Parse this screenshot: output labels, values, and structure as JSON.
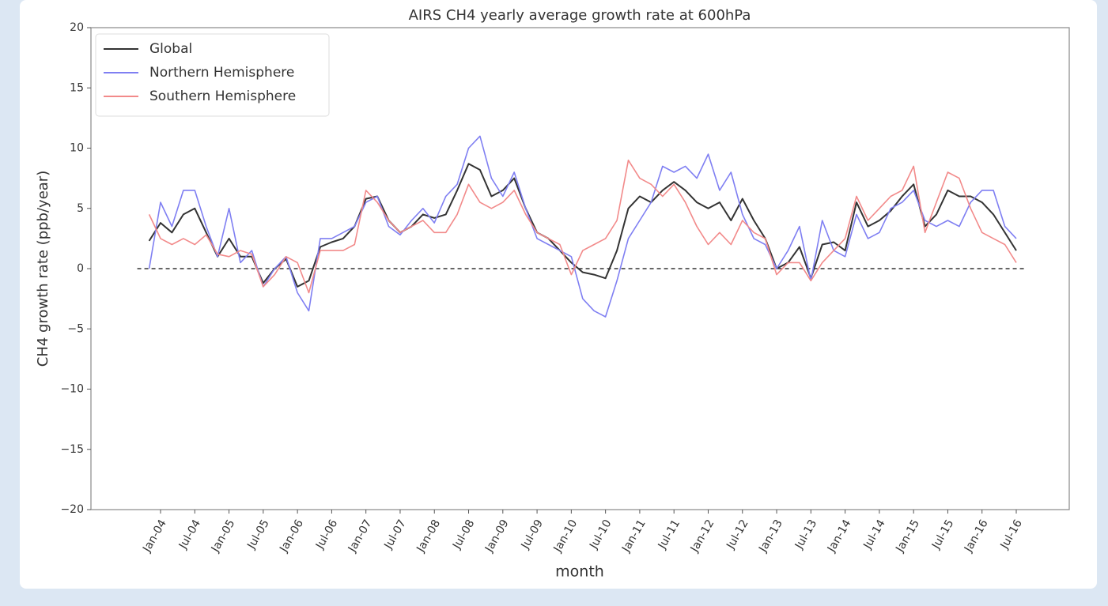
{
  "chart_data": {
    "type": "line",
    "title": "AIRS CH4 yearly average growth rate at 600hPa",
    "xlabel": "month",
    "ylabel": "CH4 growth rate (ppb/year)",
    "categories": [
      null,
      "Jan-04",
      null,
      null,
      "Jul-04",
      null,
      null,
      "Jan-05",
      null,
      null,
      "Jul-05",
      null,
      null,
      "Jan-06",
      null,
      null,
      "Jul-06",
      null,
      null,
      "Jan-07",
      null,
      null,
      "Jul-07",
      null,
      null,
      "Jan-08",
      null,
      null,
      "Jul-08",
      null,
      null,
      "Jan-09",
      null,
      null,
      "Jul-09",
      null,
      null,
      "Jan-10",
      null,
      null,
      "Jul-10",
      null,
      null,
      "Jan-11",
      null,
      null,
      "Jul-11",
      null,
      null,
      "Jan-12",
      null,
      null,
      "Jul-12",
      null,
      null,
      "Jan-13",
      null,
      null,
      "Jul-13",
      null,
      null,
      "Jan-14",
      null,
      null,
      "Jul-14",
      null,
      null,
      "Jan-15",
      null,
      null,
      "Jul-15",
      null,
      null,
      "Jan-16",
      null,
      null,
      "Jul-16"
    ],
    "series": [
      {
        "name": "Global",
        "color": "#333333",
        "values": [
          2.3,
          3.8,
          3.0,
          4.5,
          5.0,
          3.0,
          1.0,
          2.5,
          1.0,
          1.0,
          -1.2,
          0.0,
          0.8,
          -1.5,
          -1.0,
          1.8,
          2.2,
          2.5,
          3.5,
          5.8,
          6.0,
          4.0,
          3.0,
          3.5,
          4.5,
          4.2,
          4.5,
          6.5,
          8.7,
          8.2,
          6.0,
          6.5,
          7.5,
          5.0,
          3.0,
          2.5,
          1.5,
          0.5,
          -0.3,
          -0.5,
          -0.8,
          1.5,
          5.0,
          6.0,
          5.5,
          6.5,
          7.2,
          6.5,
          5.5,
          5.0,
          5.5,
          4.0,
          5.8,
          4.0,
          2.5,
          0.0,
          0.5,
          1.8,
          -0.8,
          2.0,
          2.2,
          1.5,
          5.5,
          3.5,
          4.0,
          4.8,
          6.0,
          7.0,
          3.5,
          4.5,
          6.5,
          6.0,
          6.0,
          5.5,
          4.5,
          3.0,
          1.5
        ]
      },
      {
        "name": "Northern Hemisphere",
        "color": "#7f7ff2",
        "values": [
          0.0,
          5.5,
          3.5,
          6.5,
          6.5,
          3.5,
          1.0,
          5.0,
          0.5,
          1.5,
          -1.5,
          0.0,
          1.0,
          -2.0,
          -3.5,
          2.5,
          2.5,
          3.0,
          3.5,
          5.5,
          6.0,
          3.5,
          2.8,
          4.0,
          5.0,
          3.8,
          6.0,
          7.0,
          10.0,
          11.0,
          7.5,
          6.0,
          8.0,
          5.0,
          2.5,
          2.0,
          1.5,
          1.0,
          -2.5,
          -3.5,
          -4.0,
          -1.0,
          2.5,
          4.0,
          5.5,
          8.5,
          8.0,
          8.5,
          7.5,
          9.5,
          6.5,
          8.0,
          4.5,
          2.5,
          2.0,
          0.0,
          1.5,
          3.5,
          -1.0,
          4.0,
          1.5,
          1.0,
          4.5,
          2.5,
          3.0,
          5.0,
          5.5,
          6.5,
          4.0,
          3.5,
          4.0,
          3.5,
          5.5,
          6.5,
          6.5,
          3.5,
          2.5
        ]
      },
      {
        "name": "Southern Hemisphere",
        "color": "#f28a8a",
        "values": [
          4.5,
          2.5,
          2.0,
          2.5,
          2.0,
          2.8,
          1.2,
          1.0,
          1.5,
          1.2,
          -1.5,
          -0.5,
          1.0,
          0.5,
          -2.0,
          1.5,
          1.5,
          1.5,
          2.0,
          6.5,
          5.5,
          4.0,
          3.0,
          3.5,
          4.0,
          3.0,
          3.0,
          4.5,
          7.0,
          5.5,
          5.0,
          5.5,
          6.5,
          4.5,
          3.0,
          2.5,
          2.0,
          -0.5,
          1.5,
          2.0,
          2.5,
          4.0,
          9.0,
          7.5,
          7.0,
          6.0,
          7.0,
          5.5,
          3.5,
          2.0,
          3.0,
          2.0,
          4.0,
          3.0,
          2.5,
          -0.5,
          0.5,
          0.5,
          -1.0,
          0.5,
          1.5,
          2.5,
          6.0,
          4.0,
          5.0,
          6.0,
          6.5,
          8.5,
          3.0,
          5.5,
          8.0,
          7.5,
          5.0,
          3.0,
          2.5,
          2.0,
          0.5
        ]
      }
    ],
    "ylim": [
      -20,
      20
    ],
    "yticks": [
      {
        "value": -20,
        "label": "−20"
      },
      {
        "value": -15,
        "label": "−15"
      },
      {
        "value": -10,
        "label": "−10"
      },
      {
        "value": -5,
        "label": "−5"
      },
      0,
      5,
      10,
      15,
      20
    ],
    "legend": "upper left"
  }
}
